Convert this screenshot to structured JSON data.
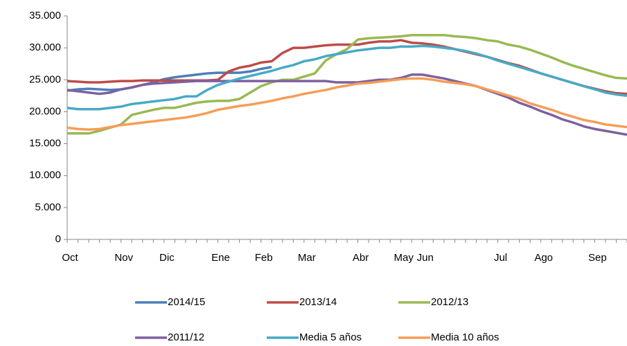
{
  "chart_data": {
    "type": "line",
    "categories": [
      "Oct",
      null,
      null,
      null,
      null,
      "Nov",
      null,
      null,
      null,
      "Dic",
      null,
      null,
      null,
      null,
      "Ene",
      null,
      null,
      null,
      "Feb",
      null,
      null,
      null,
      "Mar",
      null,
      null,
      null,
      null,
      "Abr",
      null,
      null,
      null,
      "May",
      null,
      "Jun",
      null,
      null,
      null,
      null,
      null,
      null,
      "Jul",
      null,
      null,
      null,
      "Ago",
      null,
      null,
      null,
      null,
      "Sep",
      null,
      null,
      null
    ],
    "series": [
      {
        "name": "2014/15",
        "color": "#4a7ebb",
        "values": [
          23300,
          23500,
          23600,
          23500,
          23400,
          23500,
          23800,
          24200,
          24600,
          25100,
          25400,
          25600,
          25800,
          26000,
          26100,
          26100,
          26100,
          26300,
          26700,
          27000,
          null,
          null,
          null,
          null,
          null,
          null,
          null,
          null,
          null,
          null,
          null,
          null,
          null,
          null,
          null,
          null,
          null,
          null,
          null,
          null,
          null,
          null,
          null,
          null,
          null,
          null,
          null,
          null,
          null,
          null,
          null,
          null,
          null
        ]
      },
      {
        "name": "2013/14",
        "color": "#be4b48",
        "values": [
          24800,
          24700,
          24600,
          24600,
          24700,
          24800,
          24800,
          24900,
          24900,
          24900,
          24900,
          24900,
          24900,
          24900,
          25000,
          26300,
          26900,
          27200,
          27700,
          27900,
          29200,
          30000,
          30000,
          30200,
          30400,
          30500,
          30500,
          30500,
          30800,
          31000,
          31000,
          31200,
          30800,
          30700,
          30500,
          30200,
          29800,
          29400,
          29000,
          28600,
          28100,
          27600,
          27200,
          26600,
          26000,
          25500,
          25000,
          24500,
          24000,
          23600,
          23200,
          22900,
          22800
        ]
      },
      {
        "name": "2012/13",
        "color": "#98b954",
        "values": [
          16600,
          16600,
          16600,
          17000,
          17500,
          18000,
          19500,
          19900,
          20300,
          20600,
          20600,
          21000,
          21400,
          21600,
          21700,
          21700,
          22000,
          23000,
          24000,
          24600,
          25000,
          25000,
          25500,
          26000,
          28000,
          29000,
          29800,
          31300,
          31500,
          31600,
          31700,
          31800,
          32000,
          32000,
          32000,
          32000,
          31800,
          31700,
          31500,
          31200,
          31000,
          30500,
          30200,
          29700,
          29100,
          28500,
          27800,
          27200,
          26700,
          26200,
          25700,
          25300,
          25200
        ]
      },
      {
        "name": "2011/12",
        "color": "#7d60a0",
        "values": [
          23400,
          23200,
          23000,
          22800,
          23000,
          23500,
          23800,
          24200,
          24400,
          24500,
          24600,
          24700,
          24800,
          24800,
          24800,
          24800,
          24800,
          24800,
          24800,
          24800,
          24800,
          24800,
          24800,
          24800,
          24800,
          24600,
          24600,
          24600,
          24800,
          25000,
          25000,
          25300,
          25800,
          25800,
          25500,
          25200,
          24800,
          24400,
          24000,
          23400,
          22800,
          22200,
          21400,
          20800,
          20100,
          19500,
          18800,
          18300,
          17700,
          17300,
          17000,
          16700,
          16400
        ]
      },
      {
        "name": "Media 5 años",
        "color": "#46aac5",
        "values": [
          20600,
          20400,
          20400,
          20400,
          20600,
          20800,
          21200,
          21400,
          21600,
          21800,
          22000,
          22400,
          22400,
          23400,
          24200,
          24700,
          25200,
          25600,
          26000,
          26400,
          26900,
          27300,
          27900,
          28200,
          28700,
          29000,
          29300,
          29600,
          29800,
          30000,
          30000,
          30200,
          30200,
          30300,
          30200,
          30000,
          29800,
          29500,
          29100,
          28600,
          28000,
          27500,
          27000,
          26500,
          26000,
          25500,
          25000,
          24500,
          24000,
          23500,
          23000,
          22700,
          22500
        ]
      },
      {
        "name": "Media 10 años",
        "color": "#f59d56",
        "values": [
          17500,
          17300,
          17200,
          17300,
          17600,
          17900,
          18100,
          18300,
          18500,
          18700,
          18900,
          19100,
          19400,
          19800,
          20300,
          20600,
          20900,
          21100,
          21400,
          21700,
          22100,
          22400,
          22800,
          23100,
          23400,
          23800,
          24100,
          24400,
          24500,
          24700,
          24900,
          25100,
          25200,
          25200,
          25000,
          24700,
          24500,
          24300,
          24000,
          23500,
          23000,
          22500,
          22000,
          21300,
          20800,
          20300,
          19700,
          19200,
          18700,
          18400,
          18000,
          17800,
          17600
        ]
      }
    ],
    "ylim": [
      0,
      35000
    ],
    "yticks": [
      0,
      {
        "value": 5000,
        "label": "5.000"
      },
      {
        "value": 10000,
        "label": "10.000"
      },
      {
        "value": 15000,
        "label": "15.000"
      },
      {
        "value": 20000,
        "label": "20.000"
      },
      {
        "value": 25000,
        "label": "25.000"
      },
      {
        "value": 30000,
        "label": "30.000"
      },
      {
        "value": 35000,
        "label": "35.000"
      }
    ],
    "legend": "bottom"
  }
}
